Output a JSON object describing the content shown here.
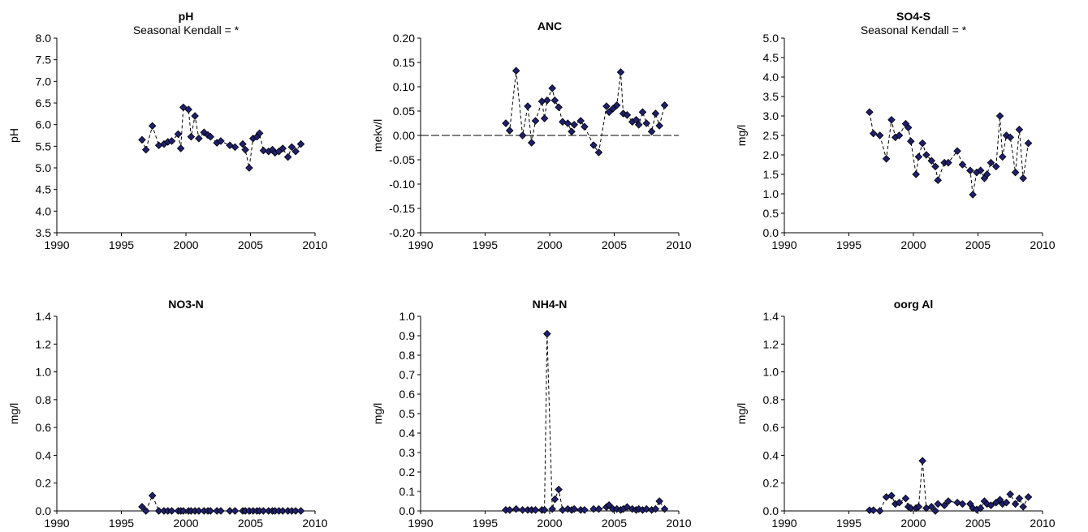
{
  "figure": {
    "marker_fill": "#1f1f6e",
    "marker_stroke": "#000000",
    "line_color": "#000000",
    "zero_line_color": "#000000"
  },
  "chart_data": [
    {
      "type": "line",
      "title": "pH",
      "subtitle": "Seasonal Kendall = *",
      "ylabel": "pH",
      "xlim": [
        1990,
        2010
      ],
      "xticks": [
        1990,
        1995,
        2000,
        2005,
        2010
      ],
      "ylim": [
        3.5,
        8.0
      ],
      "yticks": [
        "3.5",
        "4.0",
        "4.5",
        "5.0",
        "5.5",
        "6.0",
        "6.5",
        "7.0",
        "7.5",
        "8.0"
      ],
      "zero_line": false,
      "x": [
        1996.6,
        1996.9,
        1997.4,
        1997.9,
        1998.3,
        1998.6,
        1998.9,
        1999.4,
        1999.6,
        1999.8,
        2000.2,
        2000.4,
        2000.7,
        2001.0,
        2001.4,
        2001.7,
        2001.9,
        2002.4,
        2002.7,
        2003.4,
        2003.8,
        2004.4,
        2004.6,
        2004.9,
        2005.2,
        2005.5,
        2005.7,
        2006.0,
        2006.4,
        2006.7,
        2006.9,
        2007.2,
        2007.5,
        2007.9,
        2008.2,
        2008.5,
        2008.9
      ],
      "y": [
        5.65,
        5.42,
        5.97,
        5.52,
        5.55,
        5.6,
        5.62,
        5.78,
        5.45,
        6.4,
        6.35,
        5.72,
        6.2,
        5.68,
        5.82,
        5.76,
        5.72,
        5.58,
        5.62,
        5.52,
        5.48,
        5.55,
        5.42,
        5.0,
        5.68,
        5.72,
        5.8,
        5.4,
        5.38,
        5.42,
        5.35,
        5.38,
        5.45,
        5.25,
        5.48,
        5.38,
        5.55
      ]
    },
    {
      "type": "line",
      "title": "ANC",
      "subtitle": "",
      "ylabel": "mekv/l",
      "xlim": [
        1990,
        2010
      ],
      "xticks": [
        1990,
        1995,
        2000,
        2005,
        2010
      ],
      "ylim": [
        -0.2,
        0.2
      ],
      "yticks": [
        "-0.20",
        "-0.15",
        "-0.10",
        "-0.05",
        "0.00",
        "0.05",
        "0.10",
        "0.15",
        "0.20"
      ],
      "zero_line": true,
      "x": [
        1996.6,
        1996.9,
        1997.4,
        1997.9,
        1998.3,
        1998.6,
        1998.9,
        1999.4,
        1999.6,
        1999.8,
        2000.2,
        2000.4,
        2000.7,
        2001.0,
        2001.4,
        2001.7,
        2001.9,
        2002.4,
        2002.7,
        2003.4,
        2003.8,
        2004.4,
        2004.6,
        2004.9,
        2005.2,
        2005.5,
        2005.7,
        2006.0,
        2006.4,
        2006.7,
        2006.9,
        2007.2,
        2007.5,
        2007.9,
        2008.2,
        2008.5,
        2008.9
      ],
      "y": [
        0.025,
        0.01,
        0.133,
        0.0,
        0.06,
        -0.015,
        0.03,
        0.07,
        0.035,
        0.072,
        0.097,
        0.072,
        0.058,
        0.028,
        0.025,
        0.008,
        0.022,
        0.03,
        0.018,
        -0.02,
        -0.035,
        0.06,
        0.048,
        0.055,
        0.062,
        0.13,
        0.045,
        0.042,
        0.028,
        0.032,
        0.022,
        0.048,
        0.025,
        0.008,
        0.045,
        0.02,
        0.062
      ]
    },
    {
      "type": "line",
      "title": "SO4-S",
      "subtitle": "Seasonal Kendall = *",
      "ylabel": "mg/l",
      "xlim": [
        1990,
        2010
      ],
      "xticks": [
        1990,
        1995,
        2000,
        2005,
        2010
      ],
      "ylim": [
        0.0,
        5.0
      ],
      "yticks": [
        "0.0",
        "0.5",
        "1.0",
        "1.5",
        "2.0",
        "2.5",
        "3.0",
        "3.5",
        "4.0",
        "4.5",
        "5.0"
      ],
      "zero_line": false,
      "x": [
        1996.6,
        1996.9,
        1997.4,
        1997.9,
        1998.3,
        1998.6,
        1998.9,
        1999.4,
        1999.6,
        1999.8,
        2000.2,
        2000.4,
        2000.7,
        2001.0,
        2001.4,
        2001.7,
        2001.9,
        2002.4,
        2002.7,
        2003.4,
        2003.8,
        2004.4,
        2004.6,
        2004.9,
        2005.2,
        2005.5,
        2005.7,
        2006.0,
        2006.4,
        2006.7,
        2006.9,
        2007.2,
        2007.5,
        2007.9,
        2008.2,
        2008.5,
        2008.9
      ],
      "y": [
        3.1,
        2.55,
        2.5,
        1.9,
        2.9,
        2.45,
        2.5,
        2.8,
        2.7,
        2.35,
        1.5,
        1.95,
        2.3,
        2.0,
        1.85,
        1.7,
        1.35,
        1.8,
        1.8,
        2.1,
        1.75,
        1.6,
        0.98,
        1.55,
        1.6,
        1.4,
        1.5,
        1.8,
        1.7,
        3.0,
        1.95,
        2.5,
        2.45,
        1.55,
        2.65,
        1.4,
        2.3
      ]
    },
    {
      "type": "line",
      "title": "NO3-N",
      "subtitle": "",
      "ylabel": "mg/l",
      "xlim": [
        1990,
        2010
      ],
      "xticks": [
        1990,
        1995,
        2000,
        2005,
        2010
      ],
      "ylim": [
        0.0,
        1.4
      ],
      "yticks": [
        "0.0",
        "0.2",
        "0.4",
        "0.6",
        "0.8",
        "1.0",
        "1.2",
        "1.4"
      ],
      "zero_line": false,
      "x": [
        1996.6,
        1996.9,
        1997.4,
        1997.9,
        1998.3,
        1998.6,
        1998.9,
        1999.4,
        1999.6,
        1999.8,
        2000.2,
        2000.4,
        2000.7,
        2001.0,
        2001.4,
        2001.7,
        2001.9,
        2002.4,
        2002.7,
        2003.4,
        2003.8,
        2004.4,
        2004.6,
        2004.9,
        2005.2,
        2005.5,
        2005.7,
        2006.0,
        2006.4,
        2006.7,
        2006.9,
        2007.2,
        2007.5,
        2007.9,
        2008.2,
        2008.5,
        2008.9
      ],
      "y": [
        0.03,
        0.0,
        0.11,
        0.0,
        0.0,
        0.0,
        0.0,
        0.0,
        0.0,
        0.0,
        0.0,
        0.0,
        0.0,
        0.0,
        0.0,
        0.0,
        0.0,
        0.0,
        0.0,
        0.0,
        0.0,
        0.0,
        0.0,
        0.0,
        0.0,
        0.0,
        0.0,
        0.0,
        0.0,
        0.0,
        0.0,
        0.0,
        0.0,
        0.0,
        0.0,
        0.0,
        0.0
      ]
    },
    {
      "type": "line",
      "title": "NH4-N",
      "subtitle": "",
      "ylabel": "mg/l",
      "xlim": [
        1990,
        2010
      ],
      "xticks": [
        1990,
        1995,
        2000,
        2005,
        2010
      ],
      "ylim": [
        0.0,
        1.0
      ],
      "yticks": [
        "0.0",
        "0.1",
        "0.2",
        "0.3",
        "0.4",
        "0.5",
        "0.6",
        "0.7",
        "0.8",
        "0.9",
        "1.0"
      ],
      "zero_line": false,
      "x": [
        1996.6,
        1996.9,
        1997.4,
        1997.9,
        1998.3,
        1998.6,
        1998.9,
        1999.4,
        1999.6,
        1999.8,
        2000.2,
        2000.4,
        2000.7,
        2001.0,
        2001.4,
        2001.7,
        2001.9,
        2002.4,
        2002.7,
        2003.4,
        2003.8,
        2004.4,
        2004.6,
        2004.9,
        2005.2,
        2005.5,
        2005.7,
        2006.0,
        2006.4,
        2006.7,
        2006.9,
        2007.2,
        2007.5,
        2007.9,
        2008.2,
        2008.5,
        2008.9
      ],
      "y": [
        0.005,
        0.005,
        0.01,
        0.005,
        0.005,
        0.005,
        0.005,
        0.005,
        0.005,
        0.91,
        0.01,
        0.06,
        0.11,
        0.005,
        0.01,
        0.005,
        0.01,
        0.005,
        0.005,
        0.01,
        0.01,
        0.02,
        0.03,
        0.01,
        0.01,
        0.005,
        0.01,
        0.02,
        0.01,
        0.005,
        0.01,
        0.005,
        0.01,
        0.005,
        0.01,
        0.05,
        0.01
      ]
    },
    {
      "type": "line",
      "title": "oorg Al",
      "subtitle": "",
      "ylabel": "mg/l",
      "xlim": [
        1990,
        2010
      ],
      "xticks": [
        1990,
        1995,
        2000,
        2005,
        2010
      ],
      "ylim": [
        0.0,
        1.4
      ],
      "yticks": [
        "0.0",
        "0.2",
        "0.4",
        "0.6",
        "0.8",
        "1.0",
        "1.2",
        "1.4"
      ],
      "zero_line": false,
      "x": [
        1996.6,
        1996.9,
        1997.4,
        1997.9,
        1998.3,
        1998.6,
        1998.9,
        1999.4,
        1999.6,
        1999.8,
        2000.2,
        2000.4,
        2000.7,
        2001.0,
        2001.4,
        2001.7,
        2001.9,
        2002.4,
        2002.7,
        2003.4,
        2003.8,
        2004.4,
        2004.6,
        2004.9,
        2005.2,
        2005.5,
        2005.7,
        2006.0,
        2006.4,
        2006.7,
        2006.9,
        2007.2,
        2007.5,
        2007.9,
        2008.2,
        2008.5,
        2008.9
      ],
      "y": [
        0.005,
        0.005,
        0.0,
        0.1,
        0.11,
        0.05,
        0.06,
        0.09,
        0.03,
        0.02,
        0.02,
        0.03,
        0.36,
        0.02,
        0.03,
        0.0,
        0.05,
        0.04,
        0.07,
        0.06,
        0.05,
        0.05,
        0.02,
        0.01,
        0.02,
        0.07,
        0.05,
        0.04,
        0.06,
        0.08,
        0.05,
        0.06,
        0.12,
        0.05,
        0.09,
        0.03,
        0.1
      ]
    }
  ]
}
